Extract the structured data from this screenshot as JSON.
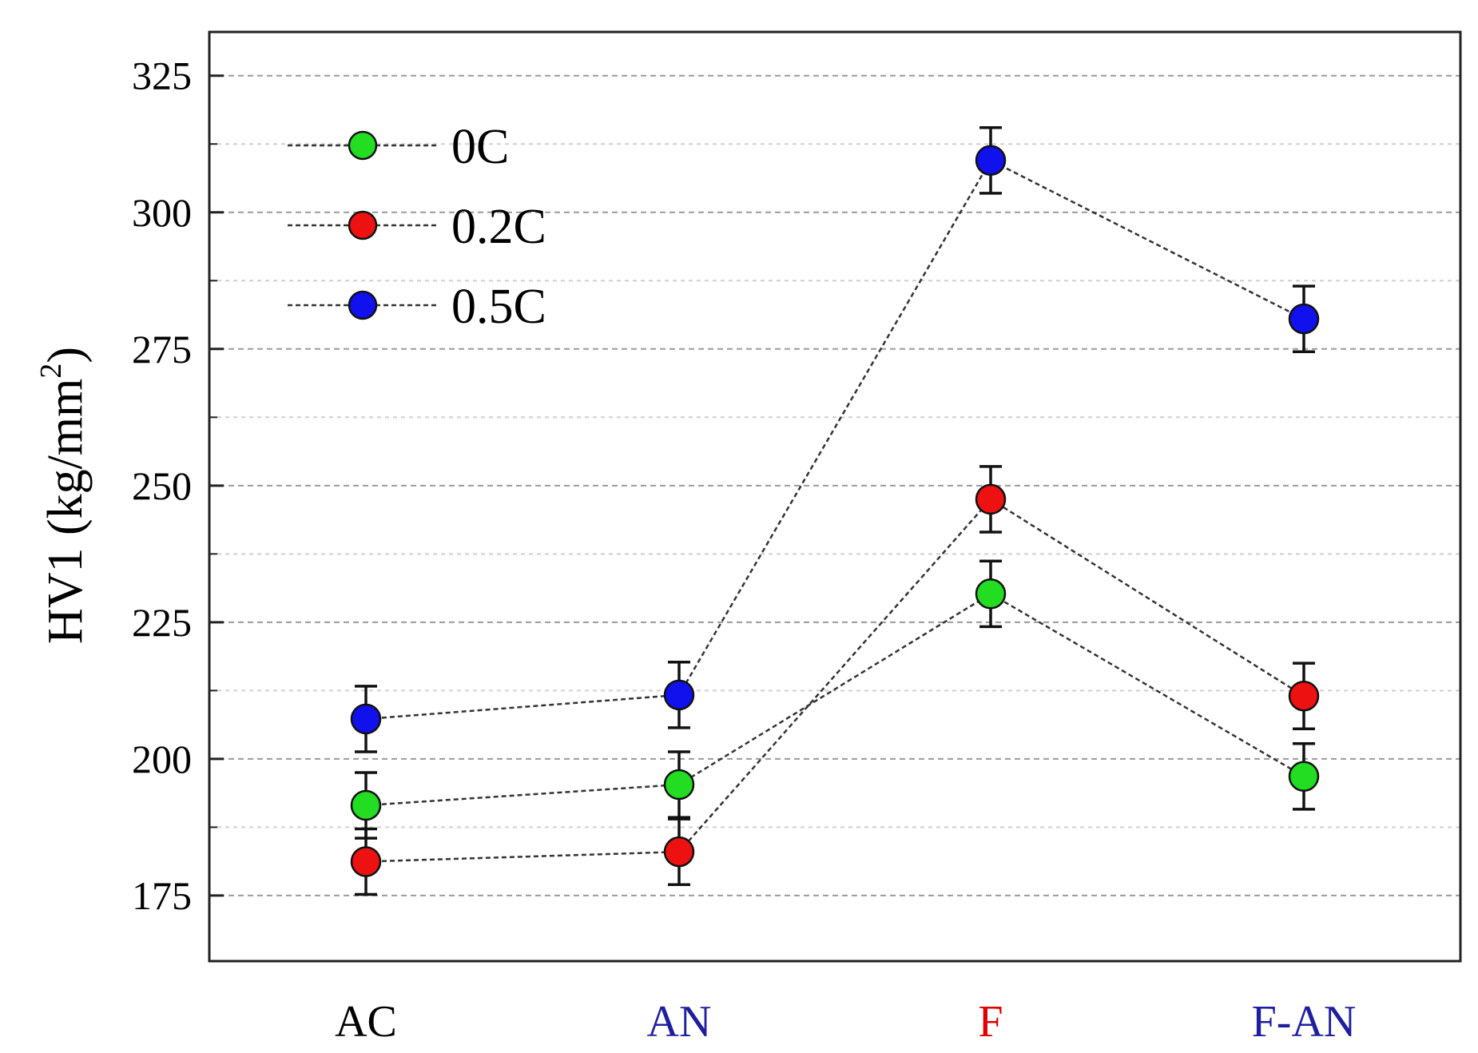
{
  "chart_data": {
    "type": "line",
    "categories": [
      "AC",
      "AN",
      "F",
      "F-AN"
    ],
    "category_colors": [
      "#000000",
      "#1f1f9e",
      "#e00000",
      "#1f1f9e"
    ],
    "ylabel_main": "HV1 (kg/mm",
    "ylabel_sup": "2",
    "ylabel_close": ")",
    "ylim": [
      163,
      333
    ],
    "yticks": [
      175,
      200,
      225,
      250,
      275,
      300,
      325
    ],
    "ytick_labels": [
      "175",
      "200",
      "225",
      "250",
      "275",
      "300",
      "325"
    ],
    "minor_grid": [
      187.5,
      212.5,
      237.5,
      262.5,
      287.5,
      312.5
    ],
    "grid": true,
    "legend_position": "top-left",
    "series": [
      {
        "name": "0C",
        "color": "#22dd22",
        "values": [
          191.5,
          195.3,
          230.2,
          196.8
        ],
        "errors": [
          6,
          6,
          6,
          6
        ]
      },
      {
        "name": "0.2C",
        "color": "#ee1111",
        "values": [
          181.2,
          183.0,
          247.5,
          211.5
        ],
        "errors": [
          6,
          6,
          6,
          6
        ]
      },
      {
        "name": "0.5C",
        "color": "#1111ee",
        "values": [
          207.3,
          211.7,
          309.5,
          280.5
        ],
        "errors": [
          6,
          6,
          6,
          6
        ]
      }
    ]
  }
}
